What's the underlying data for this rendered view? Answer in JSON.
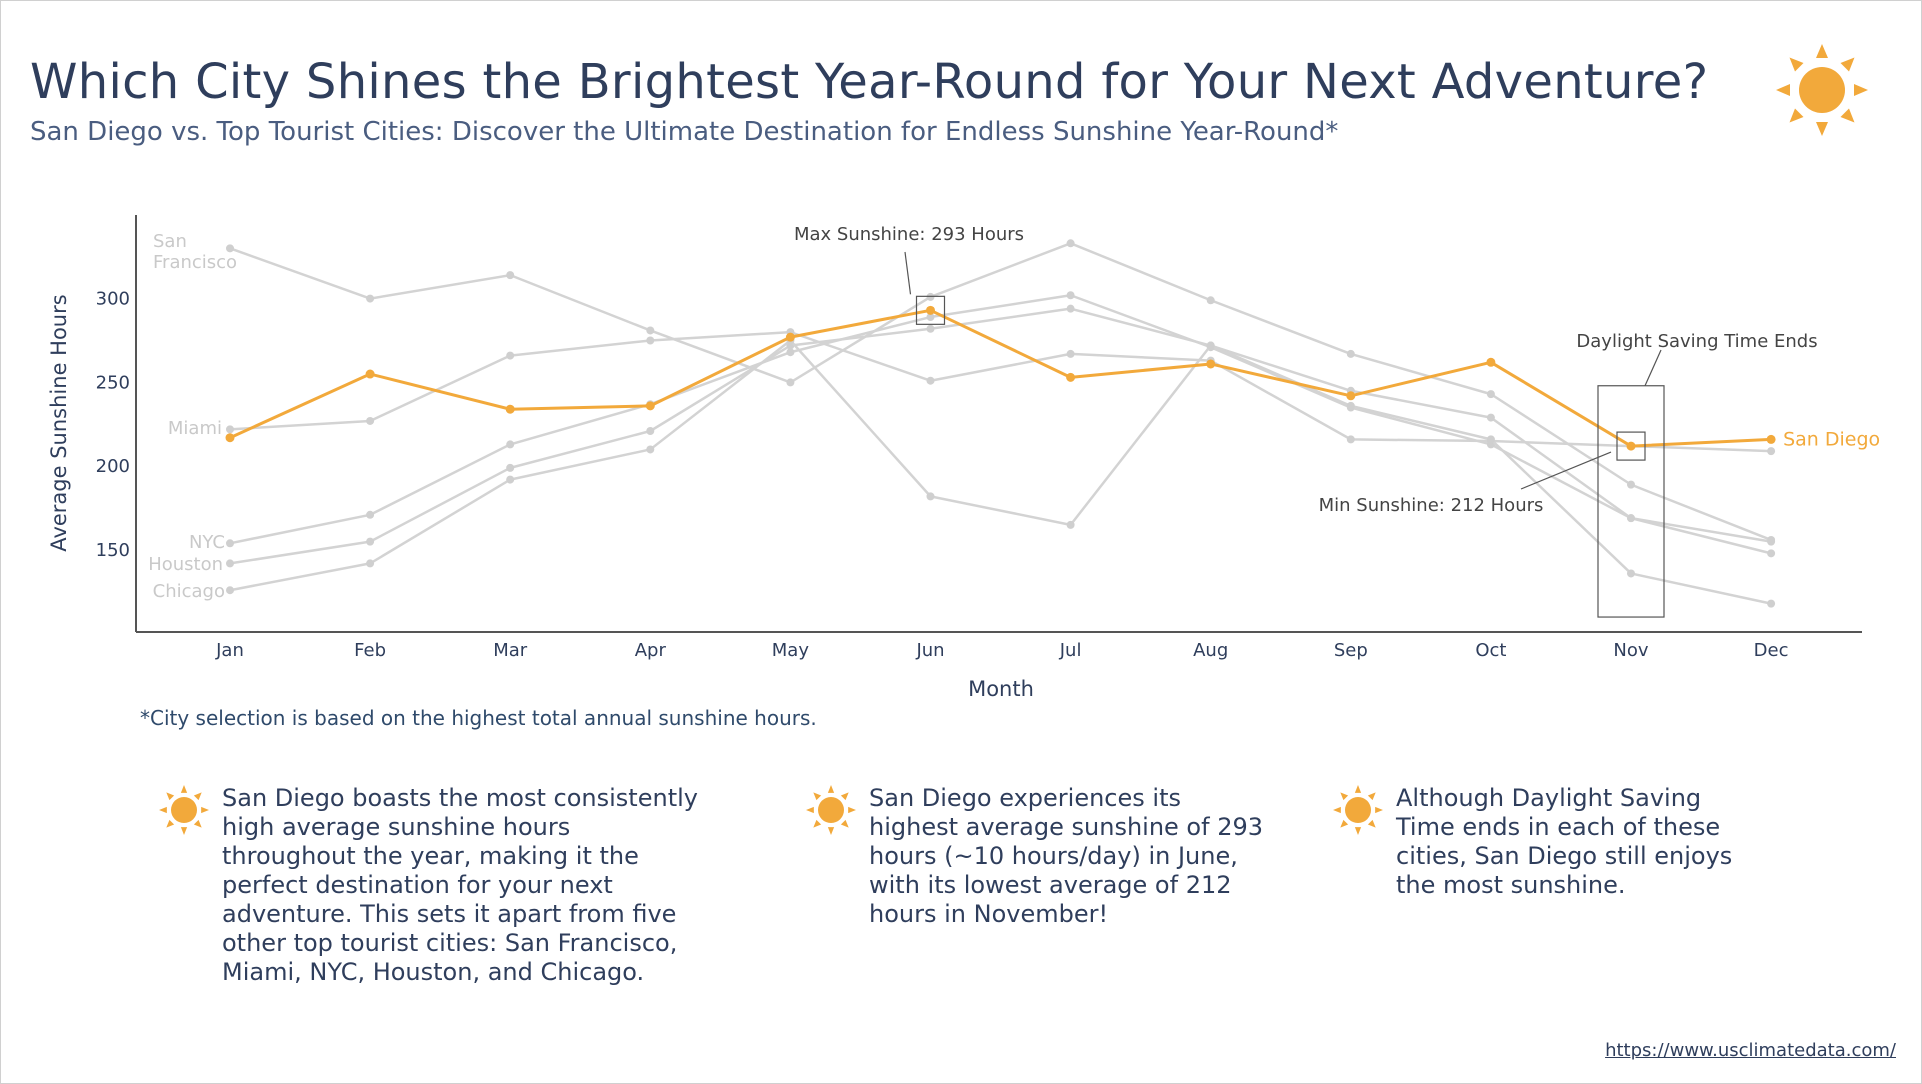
{
  "title": "Which City Shines the Brightest Year-Round for Your Next Adventure?",
  "subtitle": "San Diego vs. Top Tourist Cities: Discover the Ultimate Destination for Endless Sunshine Year-Round*",
  "footnote": "*City selection is based on the highest total annual sunshine hours.",
  "insights": [
    "San Diego boasts the most consistently high average sunshine hours throughout the year, making it the perfect destination for your next adventure. This sets it apart from five other top tourist cities: San Francisco, Miami, NYC, Houston, and Chicago.",
    "San Diego experiences its highest average sunshine of 293 hours (~10 hours/day) in June, with its lowest average of 212 hours in November!",
    "Although Daylight Saving Time ends in each of these cities, San Diego still enjoys the most sunshine."
  ],
  "source": "https://www.usclimatedata.com/",
  "icons": {
    "header": "sun-icon",
    "insight": "sun-icon"
  },
  "colors": {
    "highlight": "#f2a93b",
    "context": "#d3d3d3",
    "text": "#2f3e5c"
  },
  "chart_data": {
    "type": "line",
    "xlabel": "Month",
    "ylabel": "Average Sunshine Hours",
    "categories": [
      "Jan",
      "Feb",
      "Mar",
      "Apr",
      "May",
      "Jun",
      "Jul",
      "Aug",
      "Sep",
      "Oct",
      "Nov",
      "Dec"
    ],
    "yticks": [
      150,
      200,
      250,
      300
    ],
    "ylim": [
      100,
      345
    ],
    "grid": false,
    "series": [
      {
        "name": "San Francisco",
        "label": "San Francisco",
        "highlight": false,
        "values": [
          330,
          300,
          314,
          281,
          250,
          301,
          333,
          299,
          267,
          243,
          189,
          156
        ]
      },
      {
        "name": "Miami",
        "label": "Miami",
        "highlight": false,
        "values": [
          222,
          227,
          266,
          275,
          280,
          251,
          267,
          263,
          216,
          215,
          212,
          209
        ]
      },
      {
        "name": "NYC",
        "label": "NYC",
        "highlight": false,
        "values": [
          154,
          171,
          213,
          237,
          268,
          289,
          302,
          271,
          235,
          213,
          169,
          155
        ]
      },
      {
        "name": "Houston",
        "label": "Houston",
        "highlight": false,
        "values": [
          142,
          155,
          199,
          221,
          272,
          282,
          294,
          272,
          245,
          229,
          169,
          148
        ]
      },
      {
        "name": "Chicago",
        "label": "Chicago",
        "highlight": false,
        "values": [
          126,
          142,
          192,
          210,
          275,
          182,
          165,
          272,
          236,
          216,
          136,
          118
        ]
      },
      {
        "name": "San Diego",
        "label": "San Diego",
        "highlight": true,
        "values": [
          217,
          255,
          234,
          236,
          277,
          293,
          253,
          261,
          242,
          262,
          212,
          216
        ]
      }
    ],
    "annotations": [
      {
        "text": "Max Sunshine: 293 Hours",
        "month": "Jun",
        "value": 293
      },
      {
        "text": "Min Sunshine: 212 Hours",
        "month": "Nov",
        "value": 212
      },
      {
        "text": "Daylight Saving Time Ends",
        "month": "Nov",
        "range": [
          110,
          248
        ]
      }
    ]
  }
}
